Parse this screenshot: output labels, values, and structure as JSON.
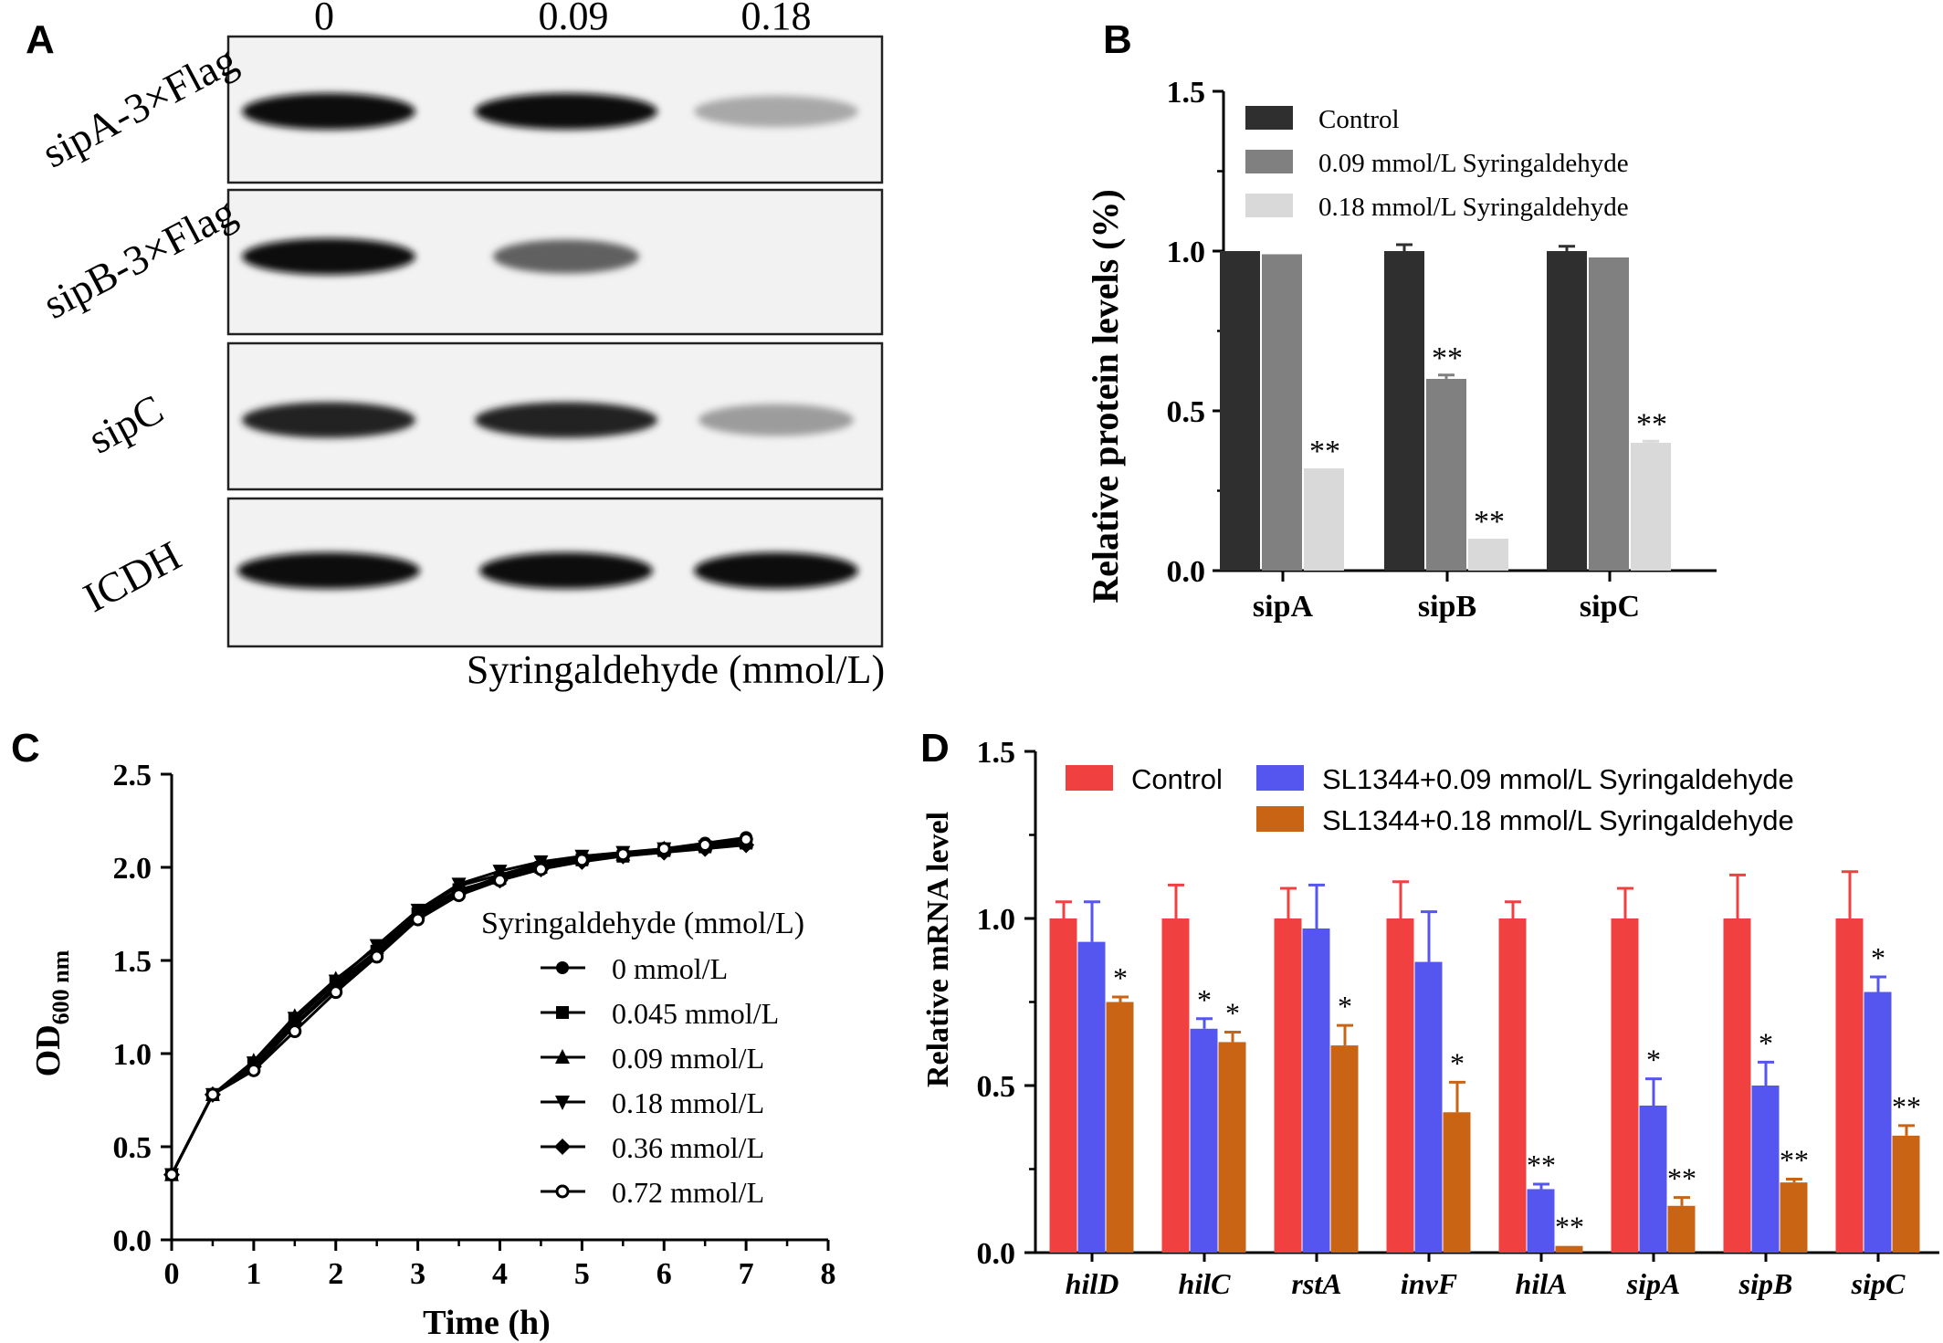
{
  "panel_a": {
    "letter": "A",
    "concentrations": [
      "0",
      "0.09",
      "0.18"
    ],
    "row_labels": [
      "sipA-3×Flag",
      "sipB-3×Flag",
      "sipC",
      "ICDH"
    ],
    "xlabel": "Syringaldehyde (mmol/L)",
    "band_intensity": [
      [
        1.0,
        0.98,
        0.3
      ],
      [
        1.0,
        0.62,
        0.0
      ],
      [
        0.9,
        0.9,
        0.35
      ],
      [
        1.0,
        1.0,
        1.0
      ]
    ]
  },
  "chart_data": [
    {
      "panel": "B",
      "type": "bar",
      "title": "",
      "xlabel": "",
      "ylabel": "Relative protein levels (%)",
      "ylim": [
        0,
        1.5
      ],
      "yticks": [
        "0.0",
        "0.5",
        "1.0",
        "1.5"
      ],
      "categories": [
        "sipA",
        "sipB",
        "sipC"
      ],
      "series": [
        {
          "name": "Control",
          "color": "#2f2f2f",
          "values": [
            1.0,
            1.0,
            1.0
          ],
          "errors": [
            0.0,
            0.02,
            0.015
          ],
          "marks": [
            "",
            "",
            ""
          ]
        },
        {
          "name": "0.09 mmol/L  Syringaldehyde",
          "color": "#808080",
          "values": [
            0.99,
            0.6,
            0.98
          ],
          "errors": [
            0.0,
            0.012,
            0.0
          ],
          "marks": [
            "",
            "**",
            ""
          ]
        },
        {
          "name": "0.18 mmol/L  Syringaldehyde",
          "color": "#d9d9d9",
          "values": [
            0.32,
            0.1,
            0.4
          ],
          "errors": [
            0.0,
            0.0,
            0.005
          ],
          "marks": [
            "**",
            "**",
            "**"
          ]
        }
      ],
      "legend_position": "top-left"
    },
    {
      "panel": "C",
      "type": "line",
      "title": "",
      "xlabel": "Time (h)",
      "ylabel": "OD600 nm",
      "ylabel_main": "OD",
      "ylabel_sub": "600 nm",
      "xlim": [
        0,
        8
      ],
      "ylim": [
        0,
        2.5
      ],
      "xticks": [
        "0",
        "1",
        "2",
        "3",
        "4",
        "5",
        "6",
        "7",
        "8"
      ],
      "yticks": [
        "0.0",
        "0.5",
        "1.0",
        "1.5",
        "2.0",
        "2.5"
      ],
      "legend_title": "Syringaldehyde (mmol/L)",
      "legend_position": "center-right",
      "x": [
        0,
        0.5,
        1,
        1.5,
        2,
        2.5,
        3,
        3.5,
        4,
        4.5,
        5,
        5.5,
        6,
        6.5,
        7
      ],
      "series": [
        {
          "name": "0 mmol/L",
          "marker": "circle",
          "values": [
            0.35,
            0.78,
            0.92,
            1.15,
            1.35,
            1.53,
            1.73,
            1.87,
            1.95,
            2.01,
            2.05,
            2.07,
            2.1,
            2.13,
            2.16
          ]
        },
        {
          "name": "0.045 mmol/L",
          "marker": "square",
          "values": [
            0.35,
            0.78,
            0.95,
            1.18,
            1.38,
            1.55,
            1.75,
            1.88,
            1.94,
            2.0,
            2.04,
            2.06,
            2.09,
            2.11,
            2.13
          ]
        },
        {
          "name": "0.09 mmol/L",
          "marker": "triangle-up",
          "values": [
            0.35,
            0.78,
            0.96,
            1.2,
            1.4,
            1.57,
            1.76,
            1.9,
            1.96,
            2.02,
            2.05,
            2.07,
            2.1,
            2.12,
            2.14
          ]
        },
        {
          "name": "0.18 mmol/L",
          "marker": "triangle-down",
          "values": [
            0.35,
            0.78,
            0.95,
            1.19,
            1.39,
            1.58,
            1.77,
            1.91,
            1.98,
            2.03,
            2.06,
            2.08,
            2.1,
            2.11,
            2.12
          ]
        },
        {
          "name": "0.36 mmol/L",
          "marker": "diamond",
          "values": [
            0.35,
            0.78,
            0.93,
            1.16,
            1.36,
            1.55,
            1.74,
            1.86,
            1.93,
            1.99,
            2.03,
            2.06,
            2.08,
            2.1,
            2.12
          ]
        },
        {
          "name": "0.72 mmol/L",
          "marker": "circle-open",
          "values": [
            0.35,
            0.78,
            0.91,
            1.12,
            1.33,
            1.52,
            1.72,
            1.85,
            1.93,
            1.99,
            2.04,
            2.07,
            2.1,
            2.12,
            2.15
          ]
        }
      ]
    },
    {
      "panel": "D",
      "type": "bar",
      "title": "",
      "xlabel": "",
      "ylabel": "Relative mRNA level",
      "ylim": [
        0,
        1.5
      ],
      "yticks": [
        "0.0",
        "0.5",
        "1.0",
        "1.5"
      ],
      "categories": [
        "hilD",
        "hilC",
        "rstA",
        "invF",
        "hilA",
        "sipA",
        "sipB",
        "sipC"
      ],
      "series": [
        {
          "name": "Control",
          "color": "#f04040",
          "values": [
            1.0,
            1.0,
            1.0,
            1.0,
            1.0,
            1.0,
            1.0,
            1.0
          ],
          "errors": [
            0.05,
            0.1,
            0.09,
            0.11,
            0.05,
            0.09,
            0.13,
            0.14
          ],
          "marks": [
            "",
            "",
            "",
            "",
            "",
            "",
            "",
            ""
          ]
        },
        {
          "name": "SL1344+0.09  mmol/L Syringaldehyde",
          "color": "#5555f0",
          "values": [
            0.93,
            0.67,
            0.97,
            0.87,
            0.19,
            0.44,
            0.5,
            0.78
          ],
          "errors": [
            0.12,
            0.03,
            0.13,
            0.15,
            0.015,
            0.08,
            0.07,
            0.045
          ],
          "marks": [
            "",
            "*",
            "",
            "",
            "**",
            "*",
            "*",
            "*"
          ]
        },
        {
          "name": "SL1344+0.18  mmol/L Syringaldehyde",
          "color": "#c86414",
          "values": [
            0.75,
            0.63,
            0.62,
            0.42,
            0.02,
            0.14,
            0.21,
            0.35
          ],
          "errors": [
            0.015,
            0.03,
            0.06,
            0.09,
            0.0,
            0.025,
            0.01,
            0.03
          ],
          "marks": [
            "*",
            "*",
            "*",
            "*",
            "**",
            "**",
            "**",
            "**"
          ]
        }
      ],
      "legend_position": "top"
    }
  ],
  "panel_letters": {
    "b": "B",
    "c": "C",
    "d": "D"
  }
}
